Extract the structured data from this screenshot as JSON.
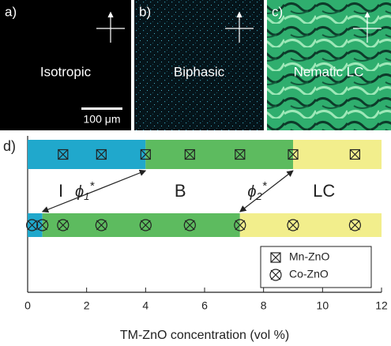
{
  "panels": [
    {
      "label": "a)",
      "caption": "Isotropic"
    },
    {
      "label": "b)",
      "caption": "Biphasic"
    },
    {
      "label": "c)",
      "caption": "Nematic LC"
    }
  ],
  "scale_bar": "100 μm",
  "chart_data": {
    "type": "phase",
    "label": "d)",
    "x_label": "TM-ZnO concentration (vol %)",
    "xlim": [
      0,
      12
    ],
    "xticks": [
      0,
      2,
      4,
      6,
      8,
      10,
      12
    ],
    "phases": [
      {
        "name": "I",
        "color": "#20a8cc"
      },
      {
        "name": "B",
        "color": "#5dbb5f"
      },
      {
        "name": "LC",
        "color": "#f2ee8c"
      }
    ],
    "series": [
      {
        "name": "Mn-ZnO",
        "marker": "box-x",
        "x": [
          1.2,
          2.5,
          4.0,
          5.5,
          7.2,
          9.0,
          11.1
        ],
        "boundaries": [
          4.0,
          9.0
        ]
      },
      {
        "name": "Co-ZnO",
        "marker": "circle-x",
        "x": [
          0.15,
          0.5,
          1.2,
          2.5,
          4.0,
          5.5,
          7.2,
          9.0,
          11.1
        ],
        "boundaries": [
          0.5,
          7.2
        ]
      }
    ],
    "boundary_labels": [
      {
        "symbol": "ϕ",
        "sub": "1",
        "sup": "*"
      },
      {
        "symbol": "ϕ",
        "sub": "2",
        "sup": "*"
      }
    ]
  }
}
